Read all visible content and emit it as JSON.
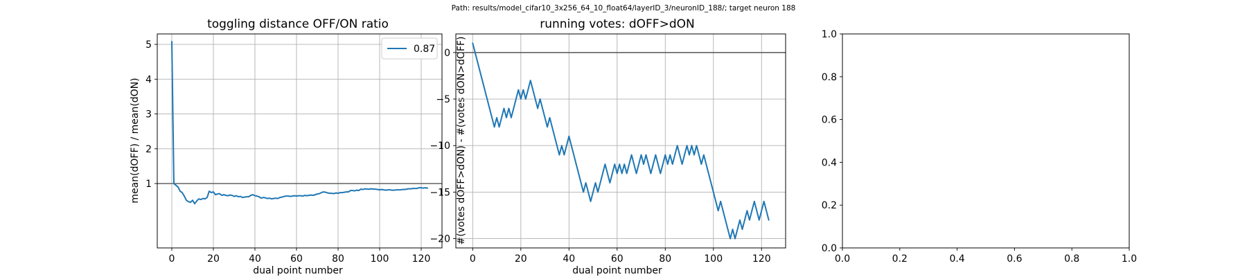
{
  "figure": {
    "suptitle": "Path: results/model_cifar10_3x256_64_10_float64/layerID_3/neuronID_188/; target neuron 188"
  },
  "colors": {
    "series": "#1f77b4",
    "ref_line": "#555555",
    "grid": "#b0b0b0"
  },
  "chart_data": [
    {
      "type": "line",
      "title": "toggling distance OFF/ON ratio",
      "xlabel": "dual point number",
      "ylabel": "mean(dOFF) / mean(dON)",
      "xlim": [
        -7,
        130
      ],
      "ylim": [
        -0.85,
        5.3
      ],
      "xticks": [
        0,
        20,
        40,
        60,
        80,
        100,
        120
      ],
      "yticks": [
        1,
        2,
        3,
        4,
        5
      ],
      "grid": true,
      "legend": {
        "position": "top-right"
      },
      "hline": 1,
      "series": [
        {
          "name": "0.87",
          "x": [
            0,
            1,
            2,
            3,
            4,
            5,
            6,
            7,
            8,
            9,
            10,
            11,
            12,
            13,
            14,
            15,
            16,
            17,
            18,
            19,
            20,
            21,
            22,
            23,
            24,
            25,
            26,
            27,
            28,
            29,
            30,
            31,
            32,
            33,
            34,
            35,
            36,
            37,
            38,
            39,
            40,
            41,
            42,
            43,
            44,
            45,
            46,
            47,
            48,
            49,
            50,
            51,
            52,
            53,
            54,
            55,
            56,
            57,
            58,
            59,
            60,
            61,
            62,
            63,
            64,
            65,
            66,
            67,
            68,
            69,
            70,
            71,
            72,
            73,
            74,
            75,
            76,
            77,
            78,
            79,
            80,
            81,
            82,
            83,
            84,
            85,
            86,
            87,
            88,
            89,
            90,
            91,
            92,
            93,
            94,
            95,
            96,
            97,
            98,
            99,
            100,
            101,
            102,
            103,
            104,
            105,
            106,
            107,
            108,
            109,
            110,
            111,
            112,
            113,
            114,
            115,
            116,
            117,
            118,
            119,
            120,
            121,
            122,
            123
          ],
          "y": [
            5.08,
            1.0,
            0.95,
            0.9,
            0.78,
            0.74,
            0.64,
            0.52,
            0.48,
            0.46,
            0.52,
            0.42,
            0.5,
            0.56,
            0.54,
            0.57,
            0.56,
            0.6,
            0.78,
            0.74,
            0.76,
            0.68,
            0.7,
            0.71,
            0.66,
            0.68,
            0.66,
            0.65,
            0.67,
            0.66,
            0.63,
            0.65,
            0.62,
            0.63,
            0.6,
            0.61,
            0.62,
            0.62,
            0.66,
            0.68,
            0.65,
            0.64,
            0.62,
            0.58,
            0.6,
            0.59,
            0.57,
            0.58,
            0.56,
            0.57,
            0.58,
            0.57,
            0.6,
            0.61,
            0.63,
            0.64,
            0.64,
            0.63,
            0.64,
            0.65,
            0.64,
            0.65,
            0.65,
            0.64,
            0.66,
            0.65,
            0.66,
            0.67,
            0.66,
            0.68,
            0.7,
            0.71,
            0.74,
            0.76,
            0.75,
            0.73,
            0.72,
            0.72,
            0.71,
            0.73,
            0.72,
            0.74,
            0.74,
            0.75,
            0.76,
            0.76,
            0.8,
            0.8,
            0.79,
            0.81,
            0.8,
            0.84,
            0.83,
            0.85,
            0.84,
            0.84,
            0.85,
            0.84,
            0.84,
            0.83,
            0.82,
            0.83,
            0.82,
            0.81,
            0.82,
            0.82,
            0.81,
            0.81,
            0.82,
            0.82,
            0.82,
            0.83,
            0.83,
            0.84,
            0.85,
            0.85,
            0.86,
            0.86,
            0.86,
            0.88,
            0.88,
            0.87,
            0.88,
            0.87
          ]
        }
      ]
    },
    {
      "type": "line",
      "title": "running votes: dOFF>dON",
      "xlabel": "dual point number",
      "ylabel": "#(votes dOFF>dON) - #(votes dON>dOFF)",
      "xlim": [
        -7,
        130
      ],
      "ylim": [
        -21,
        2
      ],
      "xticks": [
        0,
        20,
        40,
        60,
        80,
        100,
        120
      ],
      "yticks": [
        -20,
        -15,
        -10,
        -5,
        0
      ],
      "grid": true,
      "hline": 0,
      "series": [
        {
          "x": [
            0,
            1,
            2,
            3,
            4,
            5,
            6,
            7,
            8,
            9,
            10,
            11,
            12,
            13,
            14,
            15,
            16,
            17,
            18,
            19,
            20,
            21,
            22,
            23,
            24,
            25,
            26,
            27,
            28,
            29,
            30,
            31,
            32,
            33,
            34,
            35,
            36,
            37,
            38,
            39,
            40,
            41,
            42,
            43,
            44,
            45,
            46,
            47,
            48,
            49,
            50,
            51,
            52,
            53,
            54,
            55,
            56,
            57,
            58,
            59,
            60,
            61,
            62,
            63,
            64,
            65,
            66,
            67,
            68,
            69,
            70,
            71,
            72,
            73,
            74,
            75,
            76,
            77,
            78,
            79,
            80,
            81,
            82,
            83,
            84,
            85,
            86,
            87,
            88,
            89,
            90,
            91,
            92,
            93,
            94,
            95,
            96,
            97,
            98,
            99,
            100,
            101,
            102,
            103,
            104,
            105,
            106,
            107,
            108,
            109,
            110,
            111,
            112,
            113,
            114,
            115,
            116,
            117,
            118,
            119,
            120,
            121,
            122,
            123
          ],
          "y": [
            1,
            0,
            -1,
            -2,
            -3,
            -4,
            -5,
            -6,
            -7,
            -8,
            -7,
            -8,
            -7,
            -6,
            -7,
            -6,
            -7,
            -6,
            -5,
            -4,
            -5,
            -4,
            -5,
            -4,
            -3,
            -4,
            -5,
            -6,
            -5,
            -6,
            -7,
            -8,
            -7,
            -8,
            -9,
            -10,
            -11,
            -10,
            -11,
            -10,
            -9,
            -10,
            -11,
            -12,
            -13,
            -14,
            -15,
            -14,
            -15,
            -16,
            -15,
            -14,
            -15,
            -14,
            -13,
            -12,
            -13,
            -14,
            -13,
            -12,
            -13,
            -12,
            -13,
            -12,
            -13,
            -12,
            -11,
            -12,
            -13,
            -12,
            -11,
            -12,
            -11,
            -12,
            -13,
            -12,
            -11,
            -12,
            -13,
            -12,
            -11,
            -12,
            -11,
            -12,
            -11,
            -10,
            -11,
            -12,
            -11,
            -10,
            -11,
            -10,
            -11,
            -10,
            -11,
            -12,
            -11,
            -12,
            -13,
            -14,
            -15,
            -16,
            -17,
            -16,
            -17,
            -18,
            -19,
            -20,
            -19,
            -20,
            -19,
            -18,
            -19,
            -18,
            -17,
            -18,
            -17,
            -16,
            -17,
            -18,
            -17,
            -16,
            -17,
            -18
          ]
        }
      ]
    },
    {
      "type": "line",
      "title": "",
      "xlim": [
        0,
        1
      ],
      "ylim": [
        0,
        1
      ],
      "xticks": [
        0.0,
        0.2,
        0.4,
        0.6,
        0.8,
        1.0
      ],
      "yticks": [
        0.0,
        0.2,
        0.4,
        0.6,
        0.8,
        1.0
      ],
      "xtick_labels": [
        "0.0",
        "0.2",
        "0.4",
        "0.6",
        "0.8",
        "1.0"
      ],
      "ytick_labels": [
        "0.0",
        "0.2",
        "0.4",
        "0.6",
        "0.8",
        "1.0"
      ],
      "grid": false,
      "series": []
    }
  ]
}
